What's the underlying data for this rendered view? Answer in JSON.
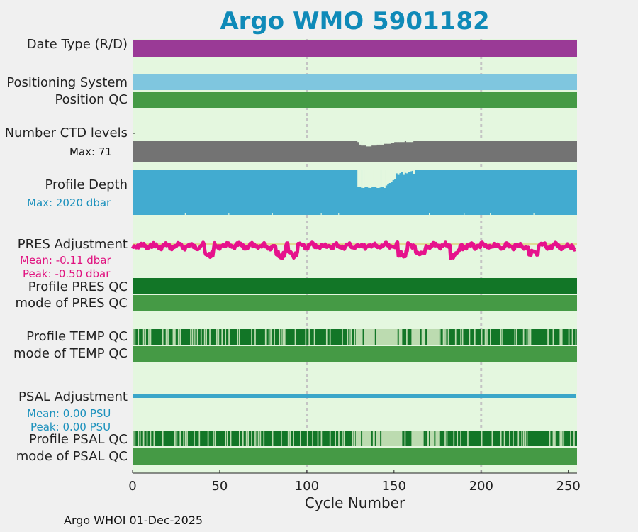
{
  "title": "Argo WMO 5901182",
  "footer": "Argo WHOI 01-Dec-2025",
  "colors": {
    "title": "#0f8ab8",
    "panel_bg": "#e4f7df",
    "date_type": "#9a3a96",
    "positioning": "#7fc6df",
    "position_qc": "#459a45",
    "ctd": "#737373",
    "depth": "#42abd0",
    "pres_adj": "#e6128c",
    "pres_qc_dark": "#127627",
    "qc_light": "#bcdbb0",
    "psal_adj": "#3aa6c9"
  },
  "labels": {
    "date_type": "Date Type (R/D)",
    "positioning_system": "Positioning System",
    "position_qc": "Position QC",
    "number_ctd": "Number CTD levels",
    "ctd_max": "Max: 71",
    "profile_depth": "Profile Depth",
    "depth_max": "Max: 2020 dbar",
    "pres_adjustment": "PRES Adjustment",
    "pres_mean": "Mean: -0.11 dbar",
    "pres_peak": "Peak: -0.50 dbar",
    "profile_pres_qc": "Profile PRES QC",
    "mode_pres_qc": "mode of PRES QC",
    "profile_temp_qc": "Profile TEMP QC",
    "mode_temp_qc": "mode of TEMP QC",
    "psal_adjustment": "PSAL Adjustment",
    "psal_mean": "Mean: 0.00 PSU",
    "psal_peak": "Peak: 0.00 PSU",
    "profile_psal_qc": "Profile PSAL QC",
    "mode_psal_qc": "mode of PSAL QC"
  },
  "chart_data": {
    "type": "bar",
    "title": "Argo WMO 5901182",
    "xlabel": "Cycle Number",
    "xlim": [
      0,
      255
    ],
    "xticks": [
      "0",
      "50",
      "100",
      "150",
      "200",
      "250"
    ],
    "gridlines_x": [
      100,
      200
    ],
    "cycles_total": 255,
    "date_type": "R",
    "ctd_levels": {
      "max": 71,
      "typical": 71,
      "reduced_range": [
        129,
        160
      ],
      "reduced_values": [
        70,
        67,
        66,
        66,
        66,
        65,
        65,
        65,
        66,
        66,
        66,
        67,
        67,
        67,
        67,
        68,
        68,
        68,
        68,
        69,
        69,
        70,
        70,
        70,
        70,
        70,
        70,
        71,
        70,
        70,
        70,
        70
      ]
    },
    "profile_depth": {
      "max": 2020,
      "unit": "dbar",
      "typical": 2000,
      "shallow_range": [
        129,
        161
      ],
      "shallow_values": [
        1250,
        1250,
        1210,
        1200,
        1240,
        1250,
        1210,
        1200,
        1250,
        1250,
        1240,
        1200,
        1210,
        1250,
        1240,
        1200,
        1310,
        1380,
        1420,
        1480,
        1550,
        1600,
        1850,
        1780,
        1860,
        1900,
        1780,
        1870,
        1850,
        1900,
        1940,
        1960,
        1800
      ]
    },
    "pres_adjustment": {
      "mean": -0.11,
      "peak": -0.5,
      "unit": "dbar"
    },
    "psal_adjustment": {
      "mean": 0.0,
      "peak": 0.0,
      "unit": "PSU"
    },
    "qc_light_ranges": [
      [
        128,
        154
      ],
      [
        161,
        176
      ]
    ],
    "series": [
      {
        "name": "Date Type (R/D)",
        "values": [
          "R"
        ]
      },
      {
        "name": "Positioning System",
        "values": [
          "GPS"
        ]
      },
      {
        "name": "Position QC",
        "values": [
          1
        ]
      },
      {
        "name": "Profile PRES QC",
        "values": [
          "A"
        ]
      },
      {
        "name": "mode of PRES QC",
        "values": [
          1
        ]
      },
      {
        "name": "Profile TEMP QC",
        "values": [
          "A/B"
        ]
      },
      {
        "name": "mode of TEMP QC",
        "values": [
          1
        ]
      },
      {
        "name": "Profile PSAL QC",
        "values": [
          "A/B"
        ]
      },
      {
        "name": "mode of PSAL QC",
        "values": [
          1
        ]
      }
    ]
  }
}
